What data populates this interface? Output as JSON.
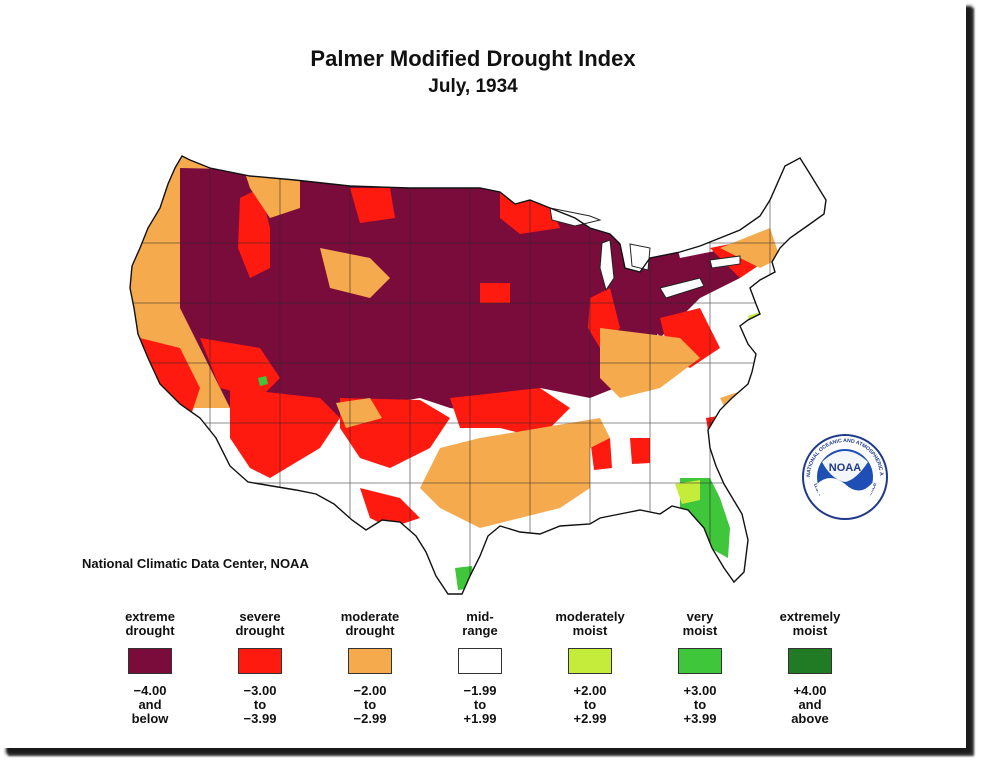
{
  "title": "Palmer Modified Drought Index",
  "subtitle": "July, 1934",
  "credit": "National Climatic Data Center, NOAA",
  "logo": {
    "text": "NOAA",
    "ring_text": "NATIONAL OCEANIC AND ATMOSPHERIC ADMINISTRATION",
    "ring_text_bottom": "U.S. DEPARTMENT OF COMMERCE",
    "icon": "noaa-logo-icon"
  },
  "map": {
    "icon": "usa-drought-map",
    "colors": {
      "extreme": "#7a0c3c",
      "severe": "#ff1a10",
      "moderate": "#f5ab4d",
      "mid": "#ffffff",
      "mod_moist": "#c6ec3b",
      "very_moist": "#3fc63a",
      "ext_moist": "#217a24"
    }
  },
  "legend": [
    {
      "label": [
        "extreme",
        "drought"
      ],
      "range": [
        "−4.00",
        "and",
        "below"
      ],
      "color": "#7a0c3c"
    },
    {
      "label": [
        "severe",
        "drought"
      ],
      "range": [
        "−3.00",
        "to",
        "−3.99"
      ],
      "color": "#ff1a10"
    },
    {
      "label": [
        "moderate",
        "drought"
      ],
      "range": [
        "−2.00",
        "to",
        "−2.99"
      ],
      "color": "#f5ab4d"
    },
    {
      "label": [
        "mid-",
        "range"
      ],
      "range": [
        "−1.99",
        "to",
        "+1.99"
      ],
      "color": "#ffffff"
    },
    {
      "label": [
        "moderately",
        "moist"
      ],
      "range": [
        "+2.00",
        "to",
        "+2.99"
      ],
      "color": "#c6ec3b"
    },
    {
      "label": [
        "very",
        "moist"
      ],
      "range": [
        "+3.00",
        "to",
        "+3.99"
      ],
      "color": "#3fc63a"
    },
    {
      "label": [
        "extremely",
        "moist"
      ],
      "range": [
        "+4.00",
        "and",
        "above"
      ],
      "color": "#217a24"
    }
  ]
}
